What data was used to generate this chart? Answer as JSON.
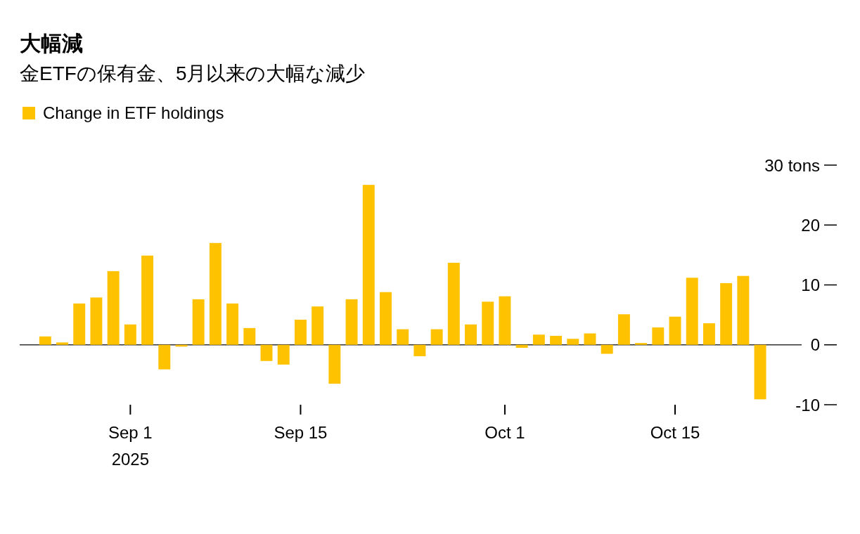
{
  "chart_data": {
    "type": "bar",
    "title": "大幅減",
    "subtitle": "金ETFの保有金、5月以来の大幅な減少",
    "categories": [
      null,
      null,
      null,
      null,
      null,
      "Sep 1\n2025",
      null,
      null,
      null,
      null,
      null,
      null,
      null,
      null,
      null,
      "Sep 15",
      null,
      null,
      null,
      null,
      null,
      null,
      null,
      null,
      null,
      null,
      null,
      "Oct 1",
      null,
      null,
      null,
      null,
      null,
      null,
      null,
      null,
      null,
      "Oct 15",
      null,
      null,
      null,
      null,
      null
    ],
    "series": [
      {
        "name": "Change in ETF holdings",
        "color": "#ffc200",
        "values": [
          1.4,
          0.4,
          6.9,
          7.9,
          12.3,
          3.4,
          14.9,
          -4.1,
          -0.3,
          7.6,
          17.0,
          6.9,
          2.8,
          -2.7,
          -3.3,
          4.2,
          6.4,
          -6.5,
          7.6,
          26.7,
          8.8,
          2.6,
          -1.9,
          2.6,
          13.7,
          3.4,
          7.2,
          8.1,
          -0.5,
          1.7,
          1.5,
          1.0,
          1.9,
          -1.5,
          5.1,
          0.3,
          2.9,
          4.7,
          11.2,
          3.6,
          10.3,
          11.5,
          -9.1
        ]
      }
    ],
    "ylim": [
      -10,
      30
    ],
    "yticks": [
      -10,
      0,
      10,
      20,
      {
        "value": 30,
        "label": "30 tons"
      }
    ],
    "ref_lines": [
      {
        "axis": "y",
        "value": 0,
        "color": "#333333"
      }
    ],
    "legend": "top left"
  }
}
